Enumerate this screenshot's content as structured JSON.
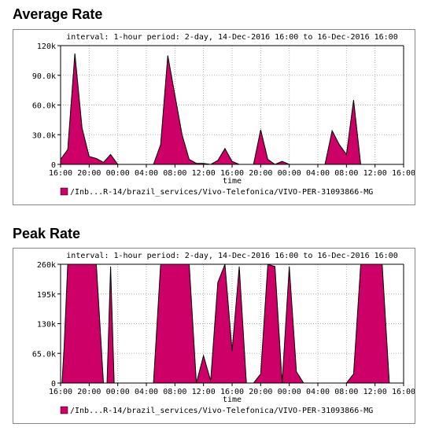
{
  "sections": [
    {
      "title": "Average Rate"
    },
    {
      "title": "Peak Rate"
    }
  ],
  "chart_data": [
    {
      "type": "area",
      "title": "Average Rate",
      "subtitle": "interval: 1-hour  period: 2-day, 14-Dec-2016 16:00 to 16-Dec-2016 16:00",
      "xlabel": "time",
      "x_ticks": [
        "16:00",
        "20:00",
        "00:00",
        "04:00",
        "08:00",
        "12:00",
        "16:00",
        "20:00",
        "00:00",
        "04:00",
        "08:00",
        "12:00",
        "16:00"
      ],
      "y_ticks": [
        "0",
        "30.0k",
        "60.0k",
        "90.0k",
        "120k"
      ],
      "ylim": [
        0,
        120000
      ],
      "x_range_hours": [
        0,
        48
      ],
      "grid": true,
      "legend_position": "bottom",
      "series": [
        {
          "name": "/Inb...R-14/brazil_services/Vivo-Telefonica/VIVO-PER-31093866-MG",
          "color": "#cc0066",
          "x": [
            0,
            1,
            2,
            3,
            4,
            5,
            6,
            7,
            8,
            9,
            10,
            11,
            12,
            13,
            14,
            15,
            16,
            17,
            18,
            19,
            20,
            21,
            22,
            23,
            24,
            25,
            26,
            27,
            28,
            29,
            30,
            31,
            32,
            33,
            34,
            35,
            36,
            37,
            38,
            39,
            40,
            41,
            42,
            43,
            44,
            45,
            46,
            47,
            48
          ],
          "values": [
            5000,
            15000,
            112000,
            37000,
            8000,
            6000,
            2000,
            10000,
            0,
            0,
            0,
            0,
            0,
            0,
            20000,
            110000,
            70000,
            30000,
            5000,
            1000,
            1000,
            0,
            4000,
            16000,
            3000,
            0,
            0,
            0,
            35000,
            5000,
            0,
            3000,
            0,
            0,
            0,
            0,
            0,
            0,
            34000,
            20000,
            10000,
            65000,
            0,
            0,
            0,
            0,
            0,
            0,
            0
          ]
        }
      ]
    },
    {
      "type": "area",
      "title": "Peak Rate",
      "subtitle": "interval: 1-hour  period: 2-day, 14-Dec-2016 16:00 to 16-Dec-2016 16:00",
      "xlabel": "time",
      "x_ticks": [
        "16:00",
        "20:00",
        "00:00",
        "04:00",
        "08:00",
        "12:00",
        "16:00",
        "20:00",
        "00:00",
        "04:00",
        "08:00",
        "12:00",
        "16:00"
      ],
      "y_ticks": [
        "0",
        "65.0k",
        "130k",
        "195k",
        "260k"
      ],
      "ylim": [
        0,
        260000
      ],
      "x_range_hours": [
        0,
        48
      ],
      "grid": true,
      "legend_position": "bottom",
      "series": [
        {
          "name": "/Inb...R-14/brazil_services/Vivo-Telefonica/VIVO-PER-31093866-MG",
          "color": "#cc0066",
          "x": [
            0,
            0.2,
            0.5,
            1,
            2,
            3,
            4,
            5,
            6,
            6.5,
            7,
            7.5,
            8,
            9,
            10,
            11,
            12,
            13,
            14,
            15,
            16,
            17,
            18,
            19,
            20,
            21,
            22,
            23,
            24,
            25,
            26,
            27,
            28,
            29,
            30,
            31,
            32,
            33,
            34,
            35,
            36,
            37,
            38,
            39,
            40,
            41,
            42,
            43,
            44,
            45,
            46,
            47,
            48
          ],
          "values": [
            0,
            0,
            80000,
            260000,
            260000,
            260000,
            260000,
            260000,
            0,
            0,
            255000,
            0,
            0,
            0,
            0,
            0,
            0,
            0,
            260000,
            260000,
            260000,
            260000,
            260000,
            0,
            60000,
            5000,
            220000,
            260000,
            70000,
            255000,
            0,
            0,
            20000,
            260000,
            255000,
            0,
            255000,
            25000,
            0,
            0,
            0,
            0,
            0,
            0,
            0,
            20000,
            260000,
            260000,
            260000,
            260000,
            0,
            0,
            0
          ]
        }
      ]
    }
  ]
}
